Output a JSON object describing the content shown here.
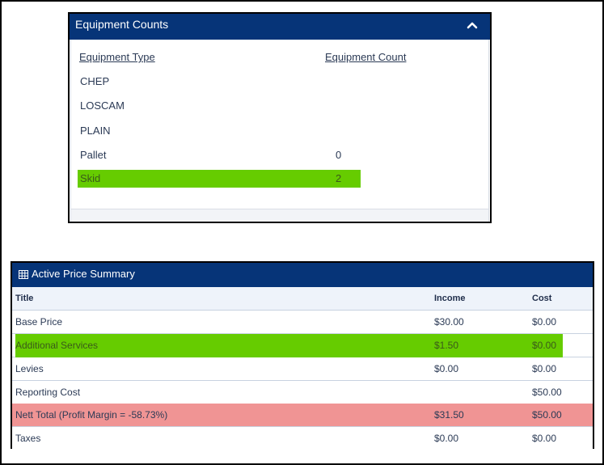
{
  "equipment_counts": {
    "title": "Equipment Counts",
    "collapse_icon": "chevron-up-icon",
    "columns": {
      "type": "Equipment Type",
      "count": "Equipment Count"
    },
    "rows": [
      {
        "type": "CHEP",
        "count": ""
      },
      {
        "type": "LOSCAM",
        "count": ""
      },
      {
        "type": "PLAIN",
        "count": ""
      },
      {
        "type": "Pallet",
        "count": "0"
      },
      {
        "type": "Skid",
        "count": "2"
      }
    ],
    "highlight_color": "#66cc00"
  },
  "price_summary": {
    "title": "Active Price Summary",
    "title_icon": "table-grid-icon",
    "columns": {
      "title": "Title",
      "income": "Income",
      "cost": "Cost"
    },
    "rows": [
      {
        "title": "Base Price",
        "income": "$30.00",
        "cost": "$0.00"
      },
      {
        "title": "Additional Services",
        "income": "$1.50",
        "cost": "$0.00"
      },
      {
        "title": "Levies",
        "income": "$0.00",
        "cost": "$0.00"
      },
      {
        "title": "Reporting Cost",
        "income": "",
        "cost": "$50.00"
      },
      {
        "title": "Nett Total (Profit Margin = -58.73%)",
        "income": "$31.50",
        "cost": "$50.00"
      },
      {
        "title": "Taxes",
        "income": "$0.00",
        "cost": "$0.00"
      }
    ],
    "header_color": "#063478",
    "highlight_color": "#66cc00",
    "nett_total_color": "#f09494"
  }
}
